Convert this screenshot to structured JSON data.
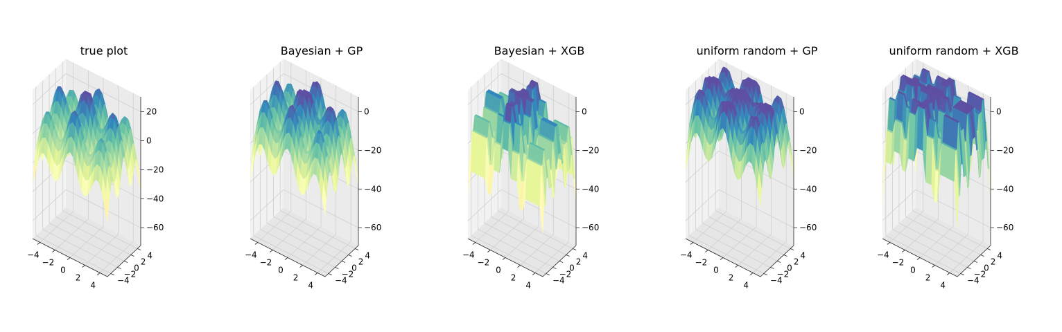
{
  "figure": {
    "colormap": "Spectral",
    "pane_colors": [
      "#f2f2f2",
      "#ebebeb",
      "#e6e6e6"
    ]
  },
  "chart_data": [
    {
      "type": "surface3d",
      "title": "true plot",
      "surface": "smooth",
      "x_ticks": [
        "−4",
        "−2",
        "0",
        "2",
        "4"
      ],
      "y_ticks": [
        "−4",
        "−2",
        "0",
        "2",
        "4"
      ],
      "z_ticks": [
        "20",
        "0",
        "−20",
        "−40",
        "−60"
      ],
      "x_range": [
        -4,
        4
      ],
      "y_range": [
        -4,
        4
      ],
      "z_range": [
        -70,
        20
      ]
    },
    {
      "type": "surface3d",
      "title": "Bayesian + GP",
      "surface": "smooth",
      "x_ticks": [
        "−4",
        "−2",
        "0",
        "2",
        "4"
      ],
      "y_ticks": [
        "−4",
        "−2",
        "0",
        "2",
        "4"
      ],
      "z_ticks": [
        "0",
        "−20",
        "−40",
        "−60"
      ],
      "x_range": [
        -4,
        4
      ],
      "y_range": [
        -4,
        4
      ],
      "z_range": [
        -70,
        15
      ]
    },
    {
      "type": "surface3d",
      "title": "Bayesian + XGB",
      "surface": "stepped",
      "x_ticks": [
        "−4",
        "−2",
        "0",
        "2",
        "4"
      ],
      "y_ticks": [
        "−4",
        "−2",
        "0",
        "2",
        "4"
      ],
      "z_ticks": [
        "0",
        "−20",
        "−40",
        "−60"
      ],
      "x_range": [
        -4,
        4
      ],
      "y_range": [
        -4,
        4
      ],
      "z_range": [
        -65,
        15
      ]
    },
    {
      "type": "surface3d",
      "title": "uniform random + GP",
      "surface": "smooth",
      "x_ticks": [
        "−4",
        "−2",
        "0",
        "2",
        "4"
      ],
      "y_ticks": [
        "−4",
        "−2",
        "0",
        "2",
        "4"
      ],
      "z_ticks": [
        "0",
        "−20",
        "−40",
        "−60"
      ],
      "x_range": [
        -4,
        4
      ],
      "y_range": [
        -4,
        4
      ],
      "z_range": [
        -75,
        5
      ]
    },
    {
      "type": "surface3d",
      "title": "uniform random + XGB",
      "surface": "stepped",
      "x_ticks": [
        "−4",
        "−2",
        "0",
        "2",
        "4"
      ],
      "y_ticks": [
        "−4",
        "−2",
        "0",
        "2",
        "4"
      ],
      "z_ticks": [
        "0",
        "−20",
        "−40",
        "−60"
      ],
      "x_range": [
        -4,
        4
      ],
      "y_range": [
        -4,
        4
      ],
      "z_range": [
        -65,
        5
      ]
    }
  ]
}
